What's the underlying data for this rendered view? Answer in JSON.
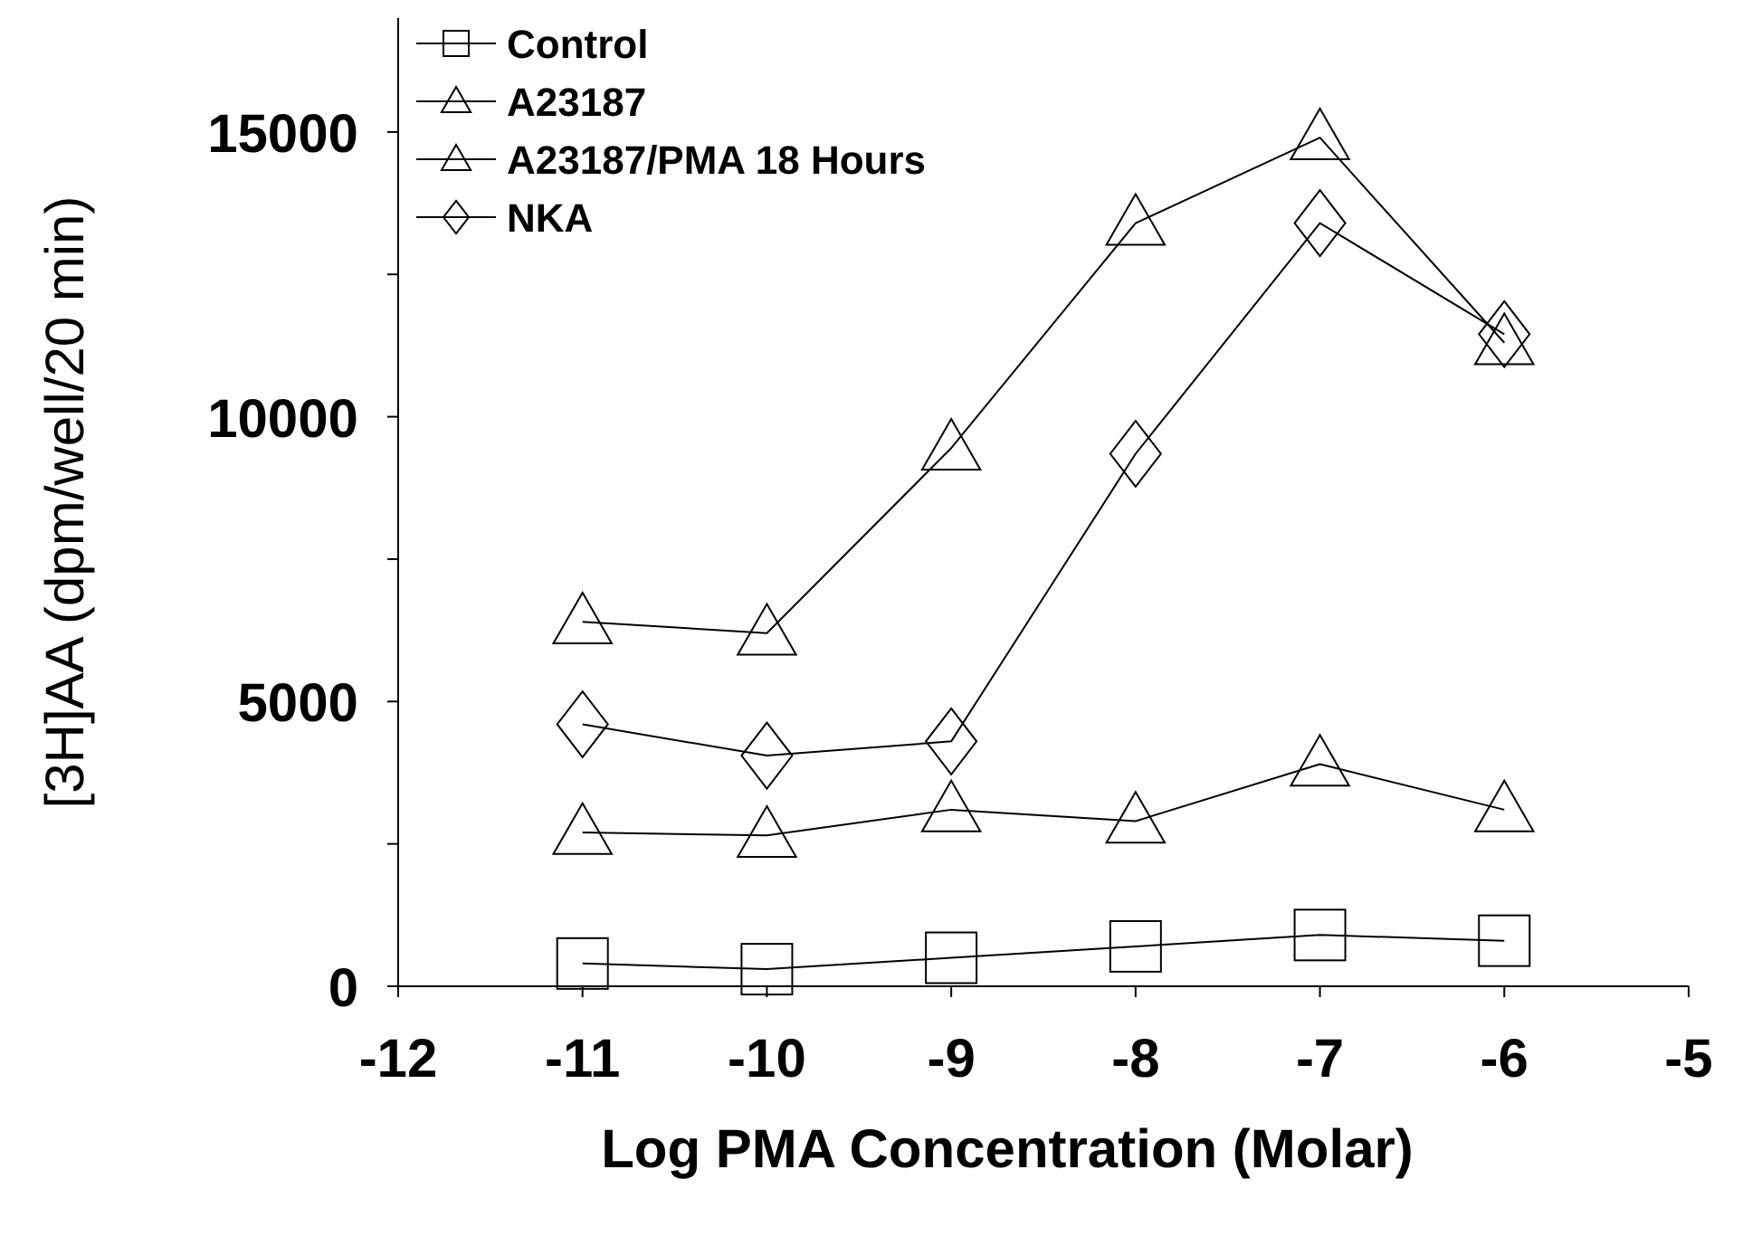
{
  "chart_data": {
    "type": "line",
    "xlabel": "Log PMA Concentration (Molar)",
    "ylabel": "[3H]AA  (dpm/well/20  min)",
    "x": [
      -11,
      -10,
      -9,
      -8,
      -7,
      -6
    ],
    "xlim": [
      -12,
      -5
    ],
    "xticks": [
      -12,
      -11,
      -10,
      -9,
      -8,
      -7,
      -6,
      -5
    ],
    "ylim": [
      0,
      17000
    ],
    "yticks": [
      0,
      {
        "value": 2500,
        "label": null
      },
      5000,
      {
        "value": 7500,
        "label": null
      },
      10000,
      {
        "value": 12500,
        "label": null
      },
      15000
    ],
    "grid": false,
    "legend": "top left",
    "line_style": "solid",
    "series": [
      {
        "name": "Control",
        "color": "#000000",
        "marker": "square",
        "values": [
          400,
          300,
          500,
          700,
          900,
          800
        ]
      },
      {
        "name": "A23187",
        "color": "#000000",
        "marker": "triangle",
        "values": [
          6400,
          6200,
          9450,
          13400,
          14900,
          11300
        ]
      },
      {
        "name": "A23187/PMA  18 Hours",
        "color": "#000000",
        "marker": "triangle",
        "values": [
          2700,
          2650,
          3100,
          2900,
          3900,
          3100
        ]
      },
      {
        "name": "NKA",
        "color": "#000000",
        "marker": "diamond",
        "values": [
          4600,
          4050,
          4300,
          9350,
          13400,
          11450
        ]
      }
    ]
  }
}
